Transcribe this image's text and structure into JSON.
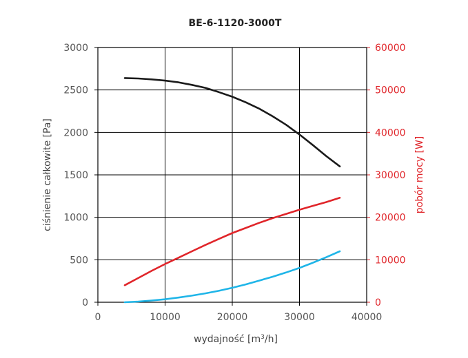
{
  "chart_data": {
    "type": "line",
    "title": "BE-6-1120-3000T",
    "xlabel_main": "wydajność [m",
    "xlabel_sup": "3",
    "xlabel_tail": "/h]",
    "ylabel": "ciśnienie całkowite [Pa]",
    "y2label": "pobór mocy [W]",
    "xlim": [
      0,
      40000
    ],
    "ylim": [
      0,
      3000
    ],
    "y2lim": [
      0,
      60000
    ],
    "x_ticks": [
      "0",
      "10000",
      "20000",
      "30000",
      "40000"
    ],
    "y_ticks": [
      "0",
      "500",
      "1000",
      "1500",
      "2000",
      "2500",
      "3000"
    ],
    "y2_ticks": [
      "0",
      "10000",
      "20000",
      "30000",
      "40000",
      "50000",
      "60000"
    ],
    "grid": true,
    "series": [
      {
        "color": "#1a1a1a",
        "axis": "left",
        "x": [
          4000,
          6000,
          8000,
          10000,
          12000,
          14000,
          16000,
          18000,
          20000,
          22000,
          24000,
          26000,
          28000,
          30000,
          32000,
          34000,
          36000
        ],
        "y": [
          2640,
          2635,
          2625,
          2610,
          2590,
          2560,
          2525,
          2475,
          2420,
          2355,
          2280,
          2190,
          2090,
          1975,
          1850,
          1720,
          1600
        ]
      },
      {
        "color": "#e0252a",
        "axis": "right",
        "x": [
          4000,
          6000,
          8000,
          10000,
          12000,
          14000,
          16000,
          18000,
          20000,
          22000,
          24000,
          26000,
          28000,
          30000,
          32000,
          34000,
          36000
        ],
        "y": [
          4000,
          5700,
          7400,
          9000,
          10500,
          12000,
          13500,
          14900,
          16300,
          17500,
          18700,
          19800,
          20800,
          21800,
          22700,
          23600,
          24600
        ]
      },
      {
        "color": "#1fb5e8",
        "axis": "left",
        "x": [
          4000,
          6000,
          8000,
          10000,
          12000,
          14000,
          16000,
          18000,
          20000,
          22000,
          24000,
          26000,
          28000,
          30000,
          32000,
          34000,
          36000
        ],
        "y": [
          0,
          8,
          20,
          35,
          55,
          78,
          105,
          135,
          170,
          210,
          255,
          300,
          350,
          405,
          465,
          530,
          600
        ]
      }
    ]
  }
}
